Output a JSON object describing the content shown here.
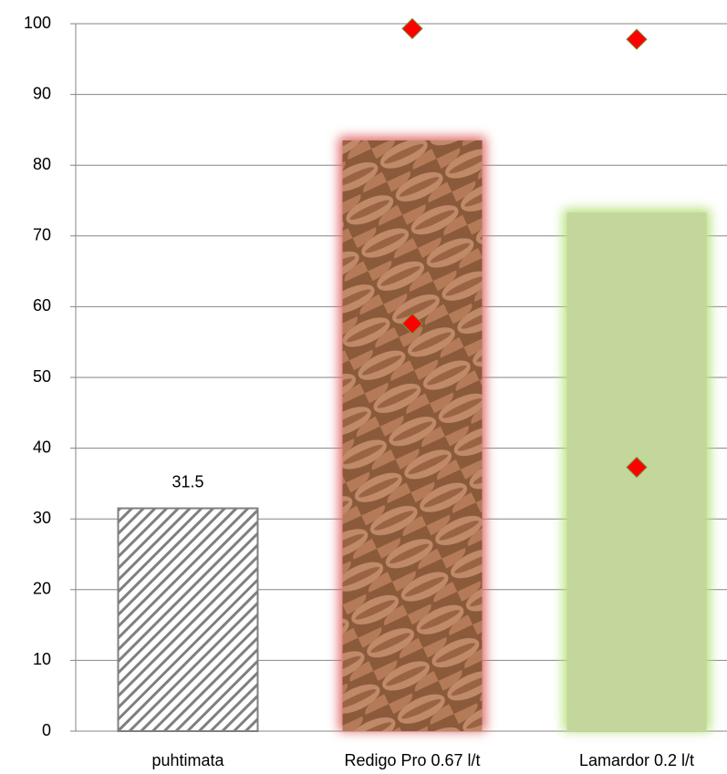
{
  "chart_data": {
    "type": "bar",
    "categories": [
      "puhtimata",
      "Redigo Pro 0.67 l/t",
      "Lamardor 0.2 l/t"
    ],
    "series": [
      {
        "type": "bar",
        "values": [
          31.5,
          83.5,
          73.3
        ],
        "value_labels": [
          "31.5",
          null,
          null
        ],
        "colors": [
          "#7f7f7f",
          "#a8694a",
          "#c3d69b"
        ],
        "glow": [
          null,
          "#e06666",
          "#b6e07a"
        ],
        "hatch": [
          true,
          false,
          false
        ]
      },
      {
        "type": "scatter",
        "color": "#ff0000",
        "values": [
          null,
          99.3,
          97.8
        ]
      },
      {
        "type": "scatter",
        "color": "#ff0000",
        "values": [
          null,
          57.6,
          37.3
        ]
      }
    ],
    "ylim": [
      0,
      100
    ],
    "yticks": [
      0,
      10,
      20,
      30,
      40,
      50,
      60,
      70,
      80,
      90,
      100
    ],
    "grid": true
  }
}
